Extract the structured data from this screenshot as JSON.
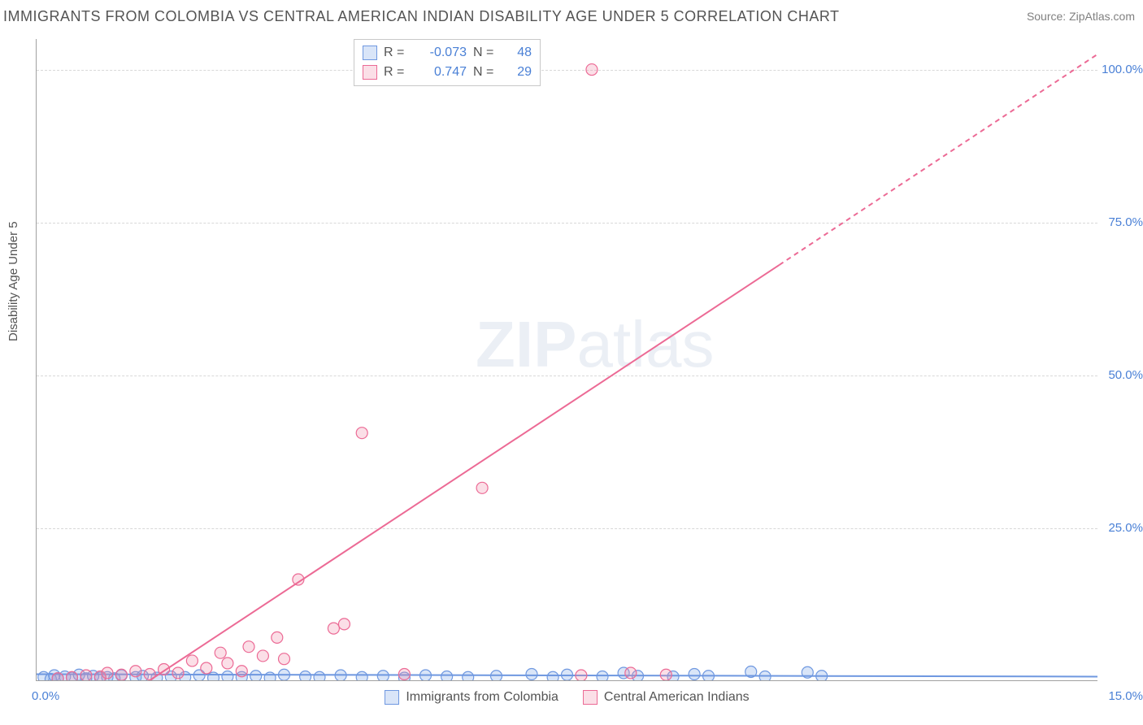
{
  "header": {
    "title": "IMMIGRANTS FROM COLOMBIA VS CENTRAL AMERICAN INDIAN DISABILITY AGE UNDER 5 CORRELATION CHART",
    "source": "Source: ZipAtlas.com"
  },
  "chart": {
    "type": "scatter",
    "ylabel": "Disability Age Under 5",
    "watermark_zip": "ZIP",
    "watermark_atlas": "atlas",
    "xlim": [
      0.0,
      15.0
    ],
    "ylim": [
      0.0,
      105.0
    ],
    "yticks": [
      {
        "v": 25.0,
        "label": "25.0%"
      },
      {
        "v": 50.0,
        "label": "50.0%"
      },
      {
        "v": 75.0,
        "label": "75.0%"
      },
      {
        "v": 100.0,
        "label": "100.0%"
      }
    ],
    "xtick_left": "0.0%",
    "xtick_right": "15.0%",
    "background_color": "#ffffff",
    "grid_color": "#d8d8d8",
    "axis_color": "#a0a0a0",
    "label_color": "#545454",
    "tick_value_color": "#4a80d6",
    "marker_radius": 7,
    "marker_stroke_width": 1.2,
    "series": [
      {
        "name": "Immigrants from Colombia",
        "fill": "rgba(120,160,230,0.28)",
        "stroke": "#6f98e0",
        "R": "-0.073",
        "N": "48",
        "trend": {
          "x1": 0.0,
          "y1": 1.0,
          "x2": 15.0,
          "y2": 0.6,
          "dash": "0"
        },
        "points": [
          [
            0.1,
            0.5
          ],
          [
            0.2,
            0.2
          ],
          [
            0.25,
            0.8
          ],
          [
            0.3,
            0.3
          ],
          [
            0.4,
            0.6
          ],
          [
            0.5,
            0.4
          ],
          [
            0.6,
            0.9
          ],
          [
            0.7,
            0.3
          ],
          [
            0.8,
            0.7
          ],
          [
            0.9,
            0.4
          ],
          [
            1.0,
            0.5
          ],
          [
            1.1,
            0.3
          ],
          [
            1.2,
            0.8
          ],
          [
            1.4,
            0.5
          ],
          [
            1.5,
            0.7
          ],
          [
            1.7,
            0.4
          ],
          [
            1.9,
            0.6
          ],
          [
            2.1,
            0.5
          ],
          [
            2.3,
            0.8
          ],
          [
            2.5,
            0.4
          ],
          [
            2.7,
            0.6
          ],
          [
            2.9,
            0.5
          ],
          [
            3.1,
            0.7
          ],
          [
            3.3,
            0.4
          ],
          [
            3.5,
            0.9
          ],
          [
            3.8,
            0.6
          ],
          [
            4.0,
            0.5
          ],
          [
            4.3,
            0.8
          ],
          [
            4.6,
            0.5
          ],
          [
            4.9,
            0.7
          ],
          [
            5.2,
            0.4
          ],
          [
            5.5,
            0.8
          ],
          [
            5.8,
            0.6
          ],
          [
            6.1,
            0.5
          ],
          [
            6.5,
            0.7
          ],
          [
            7.0,
            1.0
          ],
          [
            7.3,
            0.5
          ],
          [
            7.5,
            0.9
          ],
          [
            8.0,
            0.6
          ],
          [
            8.3,
            1.2
          ],
          [
            8.5,
            0.7
          ],
          [
            9.0,
            0.6
          ],
          [
            9.3,
            1.0
          ],
          [
            9.5,
            0.7
          ],
          [
            10.1,
            1.4
          ],
          [
            10.3,
            0.6
          ],
          [
            10.9,
            1.3
          ],
          [
            11.1,
            0.7
          ]
        ]
      },
      {
        "name": "Central American Indians",
        "fill": "rgba(240,140,170,0.28)",
        "stroke": "#ec6a95",
        "R": "0.747",
        "N": "29",
        "trend": {
          "x1": 1.6,
          "y1": 0.0,
          "x2": 10.5,
          "y2": 68.0,
          "dash": "0",
          "x2b": 15.0,
          "y2b": 102.5,
          "dash2": "6 5"
        },
        "points": [
          [
            0.3,
            0.3
          ],
          [
            0.5,
            0.5
          ],
          [
            0.7,
            0.8
          ],
          [
            0.9,
            0.6
          ],
          [
            1.0,
            1.2
          ],
          [
            1.2,
            0.9
          ],
          [
            1.4,
            1.5
          ],
          [
            1.6,
            1.0
          ],
          [
            1.8,
            1.8
          ],
          [
            2.0,
            1.2
          ],
          [
            2.2,
            3.2
          ],
          [
            2.4,
            2.0
          ],
          [
            2.6,
            4.5
          ],
          [
            2.7,
            2.8
          ],
          [
            2.9,
            1.5
          ],
          [
            3.0,
            5.5
          ],
          [
            3.2,
            4.0
          ],
          [
            3.4,
            7.0
          ],
          [
            3.5,
            3.5
          ],
          [
            3.7,
            16.5
          ],
          [
            4.2,
            8.5
          ],
          [
            4.35,
            9.2
          ],
          [
            4.6,
            40.5
          ],
          [
            5.2,
            1.0
          ],
          [
            6.3,
            31.5
          ],
          [
            7.7,
            0.8
          ],
          [
            7.85,
            100.0
          ],
          [
            8.4,
            1.2
          ],
          [
            8.9,
            0.9
          ]
        ]
      }
    ],
    "legend_top": {
      "R_label": "R =",
      "N_label": "N ="
    }
  }
}
